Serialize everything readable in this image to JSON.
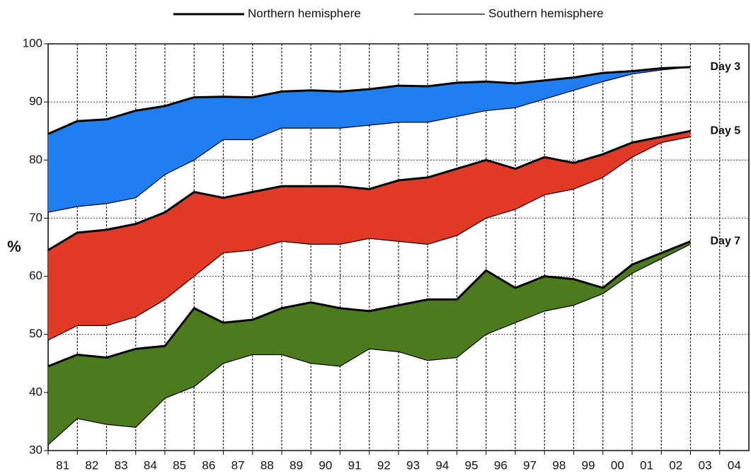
{
  "chart_data": {
    "type": "band",
    "legend": [
      "Northern hemisphere",
      "Southern hemisphere"
    ],
    "ylabel": "%",
    "categories": [
      "81",
      "82",
      "83",
      "84",
      "85",
      "86",
      "87",
      "88",
      "89",
      "90",
      "91",
      "92",
      "93",
      "94",
      "95",
      "96",
      "97",
      "98",
      "99",
      "00",
      "01",
      "02",
      "03",
      "04"
    ],
    "ylim": [
      30,
      100
    ],
    "yticks": [
      30,
      40,
      50,
      60,
      70,
      80,
      90,
      100
    ],
    "grid": true,
    "groups": [
      {
        "label": "Day 3",
        "color": "#1f7ff0",
        "northern": [
          84.5,
          86.7,
          87,
          88.5,
          89.3,
          90.8,
          90.9,
          90.8,
          91.8,
          92,
          91.8,
          92.2,
          92.8,
          92.7,
          93.3,
          93.5,
          93.2,
          93.7,
          94.2,
          95,
          95.3,
          95.8,
          96,
          null
        ],
        "southern": [
          71,
          72,
          72.5,
          73.5,
          77.5,
          80,
          83.5,
          83.5,
          85.5,
          85.5,
          85.5,
          86,
          86.5,
          86.5,
          87.5,
          88.5,
          89,
          90.5,
          92,
          93.5,
          94.8,
          95.5,
          96,
          null
        ]
      },
      {
        "label": "Day 5",
        "color": "#e03a26",
        "northern": [
          64.5,
          67.5,
          68,
          69,
          71,
          74.5,
          73.5,
          74.5,
          75.5,
          75.5,
          75.5,
          75,
          76.5,
          77,
          78.5,
          80,
          78.5,
          80.5,
          79.5,
          81,
          83,
          84,
          85,
          null
        ],
        "southern": [
          49,
          51.5,
          51.5,
          53,
          56,
          60,
          64,
          64.5,
          66,
          65.5,
          65.5,
          66.5,
          66,
          65.5,
          67,
          70,
          71.5,
          74,
          75,
          77,
          80.5,
          83,
          84,
          null
        ]
      },
      {
        "label": "Day 7",
        "color": "#4c7a1c",
        "northern": [
          44.5,
          46.5,
          46,
          47.5,
          48,
          54.5,
          52,
          52.5,
          54.5,
          55.5,
          54.5,
          54,
          55,
          56,
          56,
          61,
          58,
          60,
          59.5,
          58,
          62,
          64,
          66,
          null
        ],
        "southern": [
          31,
          35.5,
          34.5,
          34,
          39,
          41,
          45,
          46.5,
          46.5,
          45,
          44.5,
          47.5,
          47,
          45.5,
          46,
          50,
          52,
          54,
          55,
          57,
          60.5,
          63,
          65.5,
          null
        ]
      }
    ]
  }
}
